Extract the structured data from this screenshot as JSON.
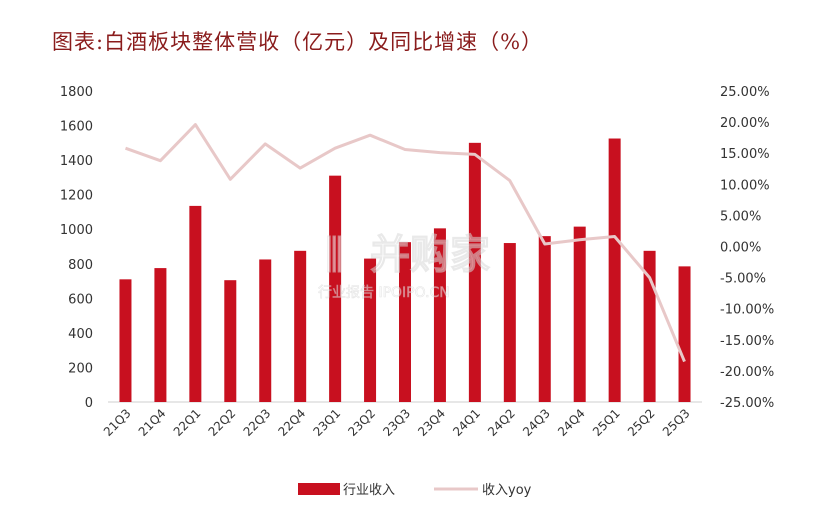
{
  "title": "图表:白酒板块整体营收（亿元）及同比增速（%）",
  "watermark": {
    "main": "并购家",
    "sub": "行业报告 IPOIPO.CN"
  },
  "colors": {
    "bar": "#c8101f",
    "line": "#e8c8c8",
    "title": "#8a1c1c",
    "axis": "#cfcfcf"
  },
  "chart_data": {
    "type": "bar",
    "categories": [
      "21Q3",
      "21Q4",
      "22Q1",
      "22Q2",
      "22Q3",
      "22Q4",
      "23Q1",
      "23Q2",
      "23Q3",
      "23Q4",
      "24Q1",
      "24Q2",
      "24Q3",
      "24Q4",
      "25Q1",
      "25Q2",
      "25Q3"
    ],
    "series": [
      {
        "name": "行业收入",
        "type": "bar",
        "axis": "left",
        "values": [
          710,
          775,
          1135,
          705,
          825,
          875,
          1310,
          830,
          925,
          1005,
          1500,
          920,
          960,
          1015,
          1525,
          875,
          785
        ]
      },
      {
        "name": "收入yoy",
        "type": "line",
        "axis": "right",
        "values": [
          15.8,
          13.8,
          19.6,
          10.8,
          16.5,
          12.6,
          15.8,
          17.9,
          15.6,
          15.1,
          14.8,
          10.6,
          0.4,
          1.1,
          1.6,
          -5.0,
          -18.5
        ]
      }
    ],
    "y_left": {
      "ylim": [
        0,
        1800
      ],
      "ticks": [
        "0",
        "200",
        "400",
        "600",
        "800",
        "1000",
        "1200",
        "1400",
        "1600",
        "1800"
      ]
    },
    "y_right": {
      "ylim": [
        -25,
        25
      ],
      "ticks": [
        "-25.00%",
        "-20.00%",
        "-15.00%",
        "-10.00%",
        "-5.00%",
        "0.00%",
        "5.00%",
        "10.00%",
        "15.00%",
        "20.00%",
        "25.00%"
      ]
    },
    "legend_position": "bottom",
    "grid": false
  }
}
